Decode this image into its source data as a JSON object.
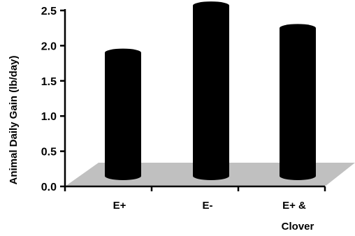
{
  "chart_data": {
    "type": "bar",
    "categories": [
      {
        "lines": [
          "E+"
        ]
      },
      {
        "lines": [
          "E-"
        ]
      },
      {
        "lines": [
          "E+ &",
          "Clover"
        ]
      }
    ],
    "values": [
      1.75,
      2.42,
      2.1
    ],
    "title": "",
    "xlabel": "",
    "ylabel": "Animal Daily Gain (lb/day)",
    "ylim": [
      0,
      2.5
    ],
    "yticks": [
      "0.0",
      "0.5",
      "1.0",
      "1.5",
      "2.0",
      "2.5"
    ],
    "grid": false,
    "legend": "none",
    "style": "3d-cylinder",
    "bar_color": "#000000",
    "floor_color": "#c0c0c0"
  }
}
